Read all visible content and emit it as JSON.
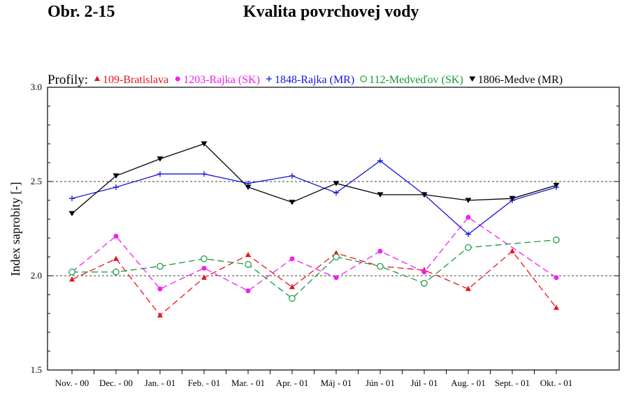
{
  "figure": {
    "number": "Obr. 2-15",
    "title": "Kvalita povrchovej vody"
  },
  "chart_data": {
    "type": "line",
    "legend_prefix": "Profily:",
    "legend_position": "top",
    "ylabel": "Index saprobity [-]",
    "ylim": [
      1.5,
      3.0
    ],
    "yticks": [
      "1.5",
      "2.0",
      "2.5",
      "3.0"
    ],
    "reference_lines": [
      2.0,
      2.5
    ],
    "categories": [
      "Nov. - 00",
      "Dec. - 00",
      "Jan. - 01",
      "Feb. - 01",
      "Mar. - 01",
      "Apr. - 01",
      "Máj - 01",
      "Jún - 01",
      "Júl - 01",
      "Aug. - 01",
      "Sept. - 01",
      "Okt. - 01"
    ],
    "series": [
      {
        "name": "109-Bratislava",
        "color": "#e8141e",
        "marker": "triangle-up",
        "line": "dashed",
        "values": [
          1.98,
          2.09,
          1.79,
          1.99,
          2.11,
          1.94,
          2.12,
          2.05,
          2.03,
          1.93,
          2.13,
          1.83
        ]
      },
      {
        "name": "1203-Rajka (SK)",
        "color": "#ee22ee",
        "marker": "circle-filled",
        "line": "dashed",
        "values": [
          2.02,
          2.21,
          1.93,
          2.04,
          1.92,
          2.09,
          1.99,
          2.13,
          2.02,
          2.31,
          null,
          1.99
        ]
      },
      {
        "name": "1848-Rajka (MR)",
        "color": "#1414e0",
        "marker": "plus",
        "line": "solid",
        "values": [
          2.41,
          2.47,
          2.54,
          2.54,
          2.49,
          2.53,
          2.44,
          2.61,
          2.43,
          2.22,
          2.4,
          2.47
        ]
      },
      {
        "name": "112-Medveďov (SK)",
        "color": "#139a3a",
        "marker": "circle-open",
        "line": "dashed",
        "values": [
          2.02,
          2.02,
          2.05,
          2.09,
          2.06,
          1.88,
          2.1,
          2.05,
          1.96,
          2.15,
          null,
          2.19
        ]
      },
      {
        "name": "1806-Medve (MR)",
        "color": "#000000",
        "marker": "triangle-down",
        "line": "solid",
        "values": [
          2.33,
          2.53,
          2.62,
          2.7,
          2.47,
          2.39,
          2.49,
          2.43,
          2.43,
          2.4,
          2.41,
          2.48
        ]
      }
    ]
  }
}
